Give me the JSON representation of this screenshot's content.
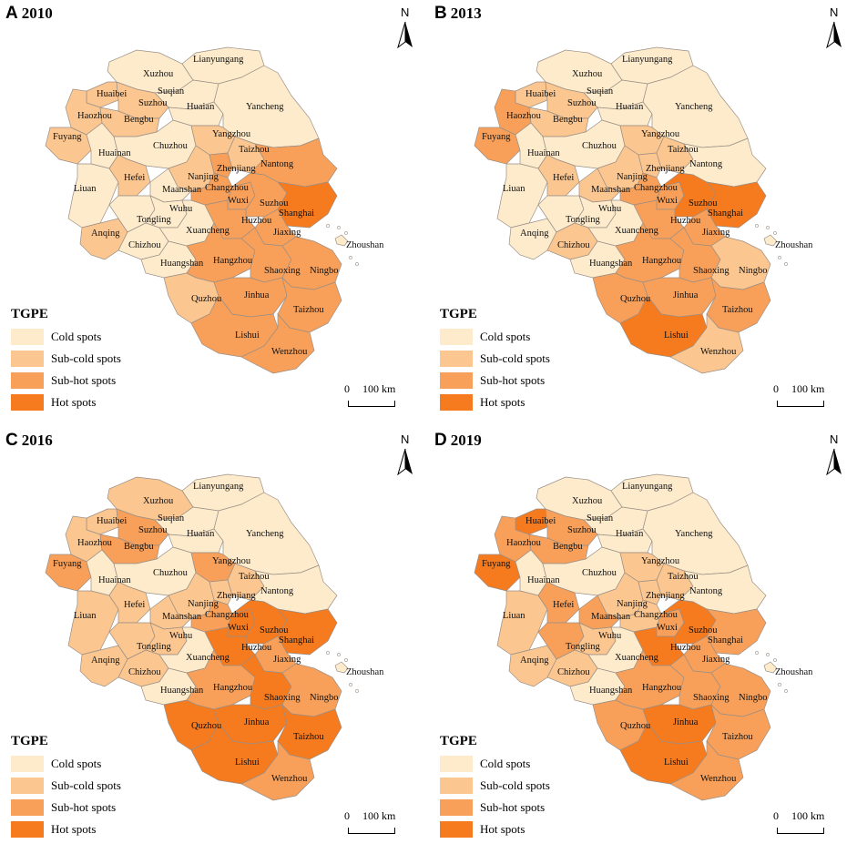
{
  "legend": {
    "title": "TGPE",
    "items": [
      {
        "key": "cold",
        "label": "Cold spots",
        "color": "#fdebcc"
      },
      {
        "key": "subcold",
        "label": "Sub-cold spots",
        "color": "#fbc690"
      },
      {
        "key": "subhot",
        "label": "Sub-hot spots",
        "color": "#f8a05a"
      },
      {
        "key": "hot",
        "label": "Hot spots",
        "color": "#f67a1e"
      }
    ]
  },
  "north_label": "N",
  "scale": {
    "zero": "0",
    "distance": "100 km"
  },
  "panels": [
    {
      "letter": "A",
      "year": "2010",
      "classes": {
        "Xuzhou": "cold",
        "Lianyungang": "cold",
        "Suqian": "cold",
        "Huaian": "cold",
        "Yancheng": "cold",
        "Huaibei": "subcold",
        "Suzhou_AH": "subcold",
        "Haozhou": "subcold",
        "Bengbu": "subcold",
        "Fuyang": "subcold",
        "Huainan": "cold",
        "Chuzhou": "cold",
        "Yangzhou": "subcold",
        "Taizhou_JS": "subcold",
        "Nantong": "subhot",
        "Liuan": "cold",
        "Hefei": "subcold",
        "Nanjing": "subcold",
        "Zhenjiang": "subhot",
        "Maanshan": "cold",
        "Changzhou": "subhot",
        "Wuxi": "subhot",
        "Suzhou_JS": "subhot",
        "Shanghai": "hot",
        "Anqing": "subcold",
        "Tongling": "cold",
        "Wuhu": "cold",
        "Chizhou": "cold",
        "Xuancheng": "cold",
        "Huzhou": "subhot",
        "Jiaxing": "subhot",
        "Huangshan": "cold",
        "Hangzhou": "subhot",
        "Shaoxing": "subhot",
        "Ningbo": "subhot",
        "Zhoushan": "cold",
        "Quzhou": "subcold",
        "Jinhua": "subhot",
        "Taizhou_ZJ": "subhot",
        "Lishui": "subhot",
        "Wenzhou": "subhot"
      }
    },
    {
      "letter": "B",
      "year": "2013",
      "classes": {
        "Xuzhou": "cold",
        "Lianyungang": "cold",
        "Suqian": "cold",
        "Huaian": "cold",
        "Yancheng": "cold",
        "Huaibei": "subcold",
        "Suzhou_AH": "subcold",
        "Haozhou": "subhot",
        "Bengbu": "subcold",
        "Fuyang": "subhot",
        "Huainan": "cold",
        "Chuzhou": "cold",
        "Yangzhou": "subcold",
        "Taizhou_JS": "subcold",
        "Nantong": "cold",
        "Liuan": "cold",
        "Hefei": "subcold",
        "Nanjing": "subcold",
        "Zhenjiang": "subcold",
        "Maanshan": "subcold",
        "Changzhou": "subhot",
        "Wuxi": "subhot",
        "Suzhou_JS": "hot",
        "Shanghai": "hot",
        "Anqing": "cold",
        "Tongling": "cold",
        "Wuhu": "cold",
        "Chizhou": "subcold",
        "Xuancheng": "cold",
        "Huzhou": "subhot",
        "Jiaxing": "subhot",
        "Huangshan": "cold",
        "Hangzhou": "subhot",
        "Shaoxing": "subhot",
        "Ningbo": "subcold",
        "Zhoushan": "cold",
        "Quzhou": "subhot",
        "Jinhua": "subhot",
        "Taizhou_ZJ": "subhot",
        "Lishui": "hot",
        "Wenzhou": "subcold"
      }
    },
    {
      "letter": "C",
      "year": "2016",
      "classes": {
        "Xuzhou": "subcold",
        "Lianyungang": "cold",
        "Suqian": "cold",
        "Huaian": "cold",
        "Yancheng": "cold",
        "Huaibei": "subcold",
        "Suzhou_AH": "subhot",
        "Haozhou": "subcold",
        "Bengbu": "subhot",
        "Fuyang": "subhot",
        "Huainan": "cold",
        "Chuzhou": "cold",
        "Yangzhou": "subhot",
        "Taizhou_JS": "subcold",
        "Nantong": "cold",
        "Liuan": "subcold",
        "Hefei": "subcold",
        "Nanjing": "subcold",
        "Zhenjiang": "subcold",
        "Maanshan": "subcold",
        "Changzhou": "subhot",
        "Wuxi": "hot",
        "Suzhou_JS": "hot",
        "Shanghai": "hot",
        "Anqing": "subcold",
        "Tongling": "subcold",
        "Wuhu": "subcold",
        "Chizhou": "subcold",
        "Xuancheng": "cold",
        "Huzhou": "hot",
        "Jiaxing": "subhot",
        "Huangshan": "cold",
        "Hangzhou": "subhot",
        "Shaoxing": "hot",
        "Ningbo": "subhot",
        "Zhoushan": "cold",
        "Quzhou": "hot",
        "Jinhua": "hot",
        "Taizhou_ZJ": "hot",
        "Lishui": "hot",
        "Wenzhou": "subhot"
      }
    },
    {
      "letter": "D",
      "year": "2019",
      "classes": {
        "Xuzhou": "cold",
        "Lianyungang": "cold",
        "Suqian": "cold",
        "Huaian": "cold",
        "Yancheng": "cold",
        "Huaibei": "hot",
        "Suzhou_AH": "subhot",
        "Haozhou": "subhot",
        "Bengbu": "subhot",
        "Fuyang": "hot",
        "Huainan": "cold",
        "Chuzhou": "cold",
        "Yangzhou": "subcold",
        "Taizhou_JS": "subcold",
        "Nantong": "cold",
        "Liuan": "subcold",
        "Hefei": "subhot",
        "Nanjing": "subcold",
        "Zhenjiang": "subcold",
        "Maanshan": "subhot",
        "Changzhou": "subcold",
        "Wuxi": "subhot",
        "Suzhou_JS": "hot",
        "Shanghai": "subhot",
        "Anqing": "subcold",
        "Tongling": "subhot",
        "Wuhu": "subcold",
        "Chizhou": "subcold",
        "Xuancheng": "cold",
        "Huzhou": "hot",
        "Jiaxing": "subhot",
        "Huangshan": "cold",
        "Hangzhou": "subhot",
        "Shaoxing": "subhot",
        "Ningbo": "subhot",
        "Zhoushan": "cold",
        "Quzhou": "subhot",
        "Jinhua": "hot",
        "Taizhou_ZJ": "subhot",
        "Lishui": "hot",
        "Wenzhou": "subhot"
      }
    }
  ],
  "cities": [
    {
      "id": "Xuzhou",
      "label": "Xuzhou"
    },
    {
      "id": "Lianyungang",
      "label": "Lianyungang"
    },
    {
      "id": "Suqian",
      "label": "Suqian"
    },
    {
      "id": "Huaian",
      "label": "Huaian"
    },
    {
      "id": "Yancheng",
      "label": "Yancheng"
    },
    {
      "id": "Huaibei",
      "label": "Huaibei"
    },
    {
      "id": "Suzhou_AH",
      "label": "Suzhou"
    },
    {
      "id": "Haozhou",
      "label": "Haozhou"
    },
    {
      "id": "Bengbu",
      "label": "Bengbu"
    },
    {
      "id": "Fuyang",
      "label": "Fuyang"
    },
    {
      "id": "Huainan",
      "label": "Huainan"
    },
    {
      "id": "Chuzhou",
      "label": "Chuzhou"
    },
    {
      "id": "Yangzhou",
      "label": "Yangzhou"
    },
    {
      "id": "Taizhou_JS",
      "label": "Taizhou"
    },
    {
      "id": "Nantong",
      "label": "Nantong"
    },
    {
      "id": "Liuan",
      "label": "Liuan"
    },
    {
      "id": "Hefei",
      "label": "Hefei"
    },
    {
      "id": "Nanjing",
      "label": "Nanjing"
    },
    {
      "id": "Zhenjiang",
      "label": "Zhenjiang"
    },
    {
      "id": "Maanshan",
      "label": "Maanshan"
    },
    {
      "id": "Changzhou",
      "label": "Changzhou"
    },
    {
      "id": "Wuxi",
      "label": "Wuxi"
    },
    {
      "id": "Suzhou_JS",
      "label": "Suzhou"
    },
    {
      "id": "Shanghai",
      "label": "Shanghai"
    },
    {
      "id": "Anqing",
      "label": "Anqing"
    },
    {
      "id": "Tongling",
      "label": "Tongling"
    },
    {
      "id": "Wuhu",
      "label": "Wuhu"
    },
    {
      "id": "Chizhou",
      "label": "Chizhou"
    },
    {
      "id": "Xuancheng",
      "label": "Xuancheng"
    },
    {
      "id": "Huzhou",
      "label": "Huzhou"
    },
    {
      "id": "Jiaxing",
      "label": "Jiaxing"
    },
    {
      "id": "Huangshan",
      "label": "Huangshan"
    },
    {
      "id": "Hangzhou",
      "label": "Hangzhou"
    },
    {
      "id": "Shaoxing",
      "label": "Shaoxing"
    },
    {
      "id": "Ningbo",
      "label": "Ningbo"
    },
    {
      "id": "Zhoushan",
      "label": "Zhoushan"
    },
    {
      "id": "Quzhou",
      "label": "Quzhou"
    },
    {
      "id": "Jinhua",
      "label": "Jinhua"
    },
    {
      "id": "Taizhou_ZJ",
      "label": "Taizhou"
    },
    {
      "id": "Lishui",
      "label": "Lishui"
    },
    {
      "id": "Wenzhou",
      "label": "Wenzhou"
    }
  ]
}
